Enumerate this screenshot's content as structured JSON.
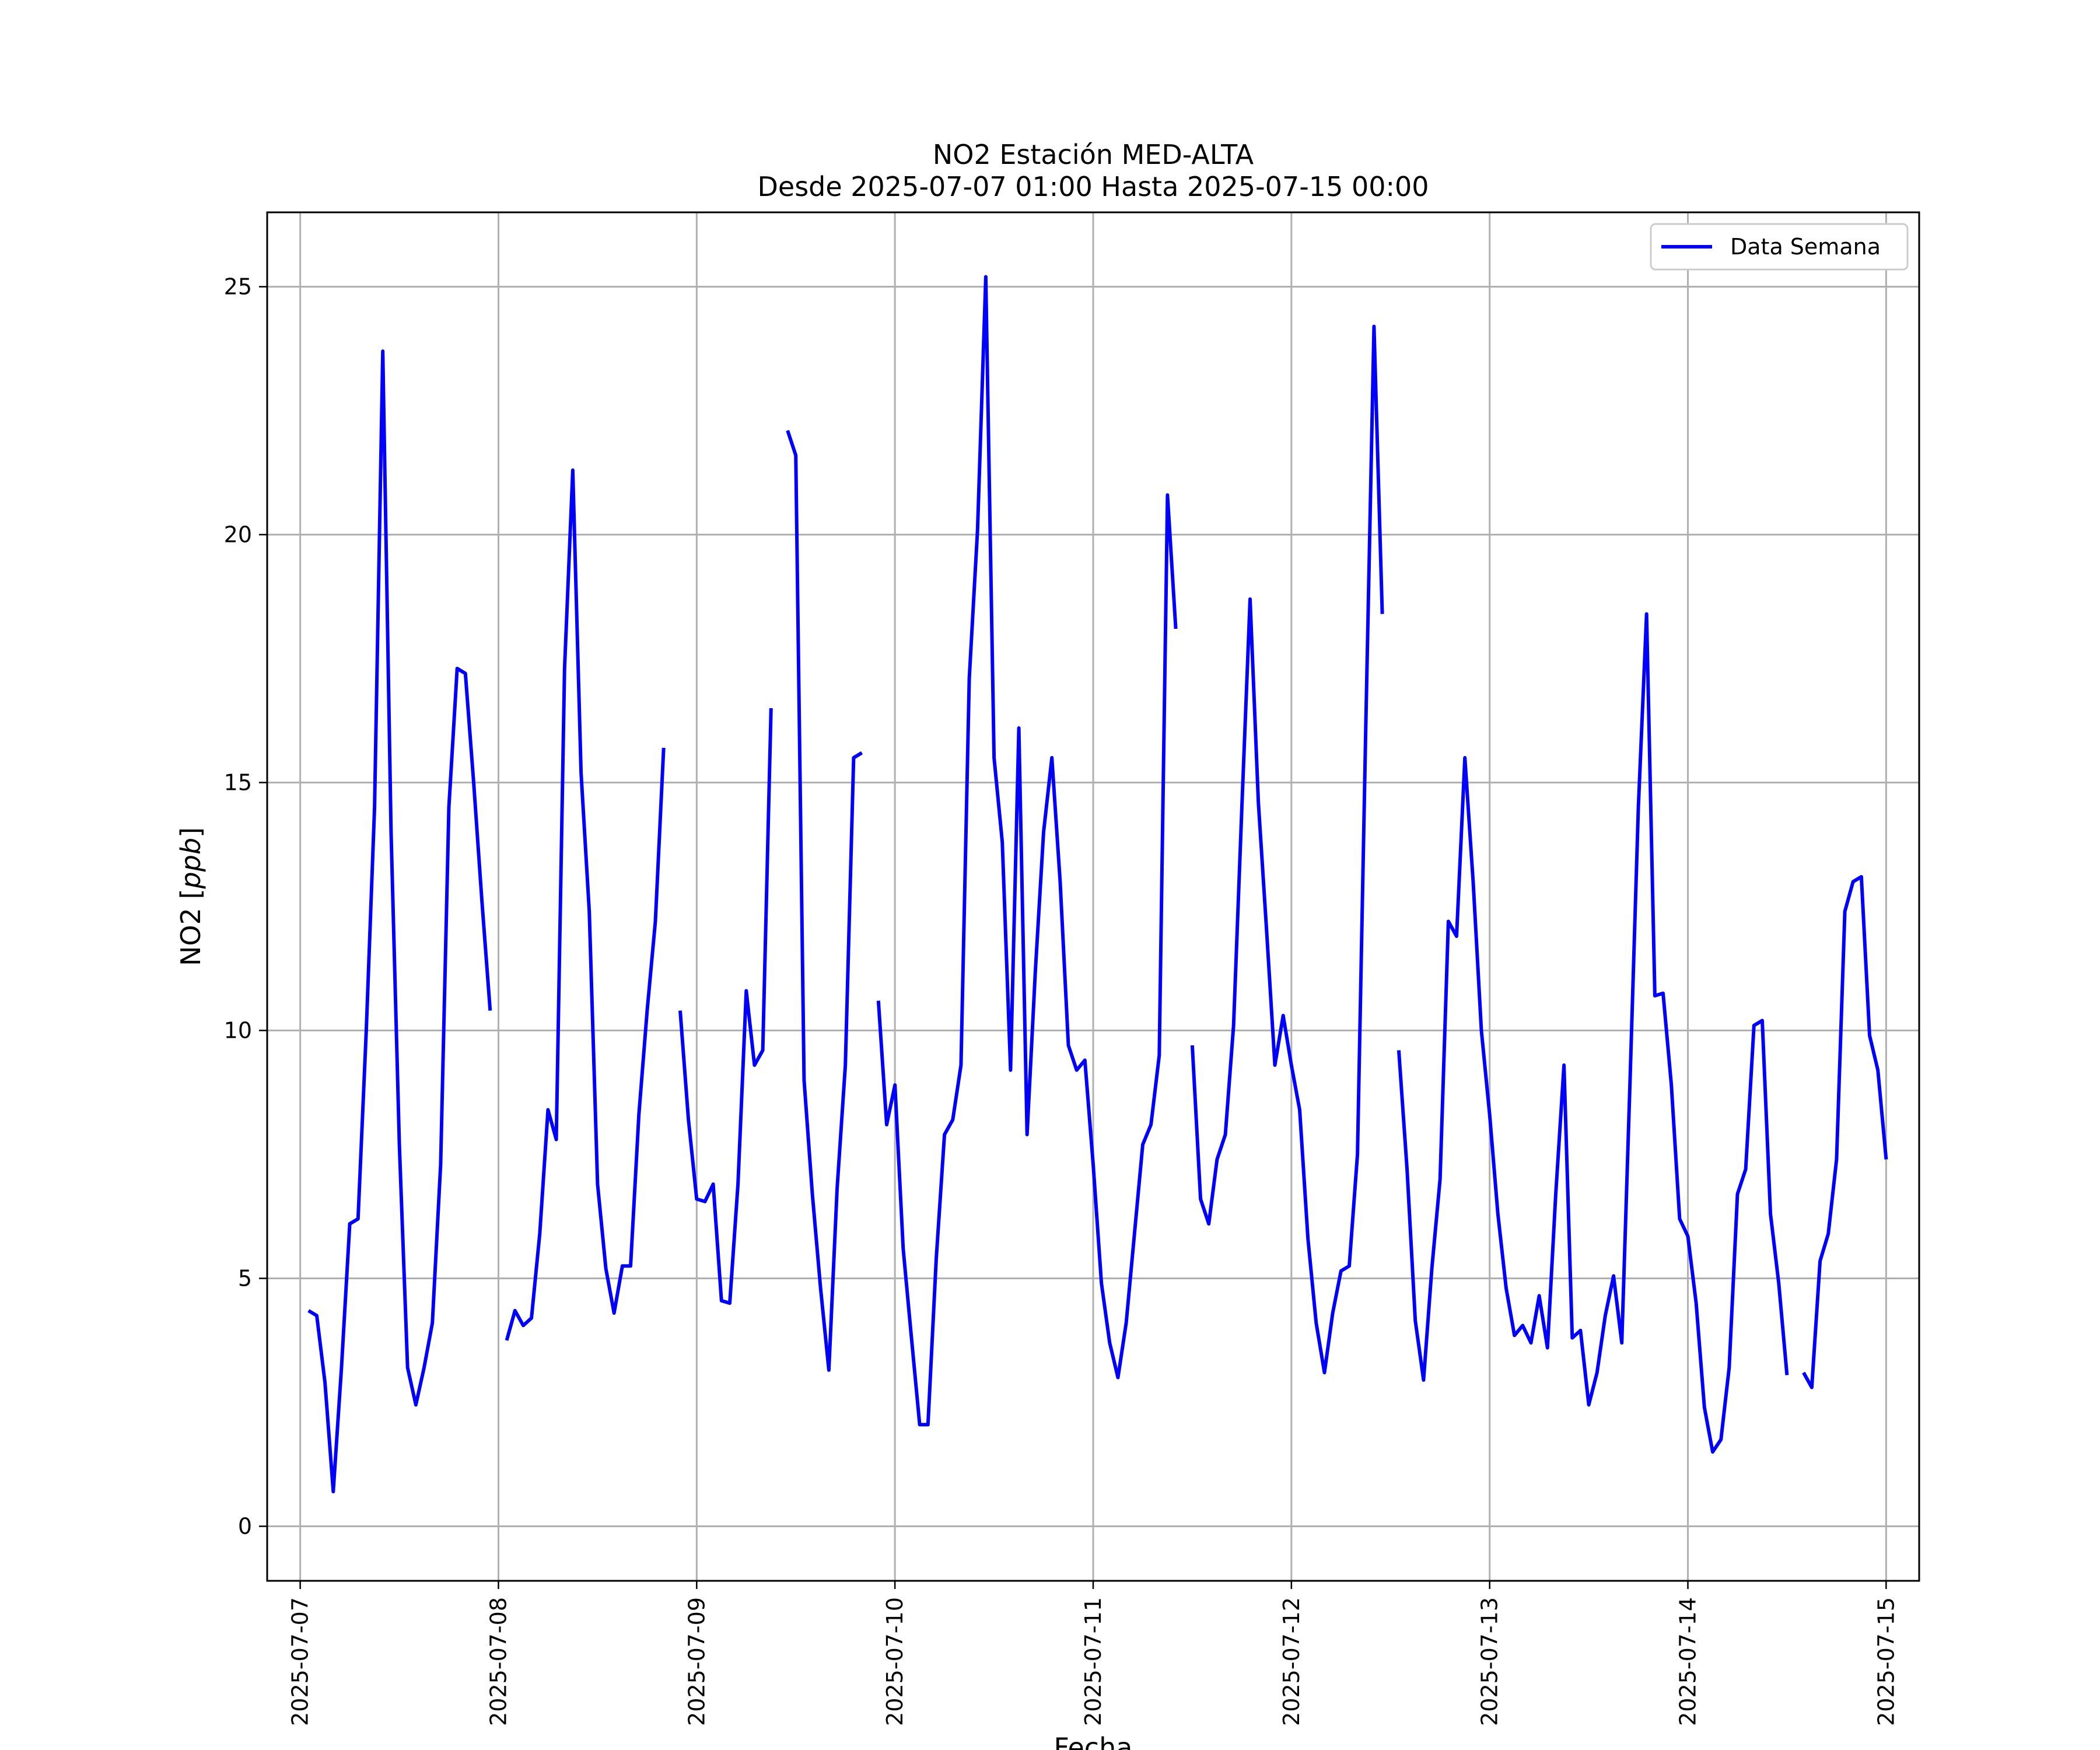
{
  "chart_data": {
    "type": "line",
    "title": "NO2 Estación MED-ALTA",
    "subtitle": "Desde 2025-07-07 01:00 Hasta 2025-07-15 00:00",
    "xlabel": "Fecha",
    "ylabel": "NO2 [ppb]",
    "ylabel_parts": {
      "prefix": "NO2 [",
      "unit": "ppb",
      "suffix": "]"
    },
    "xlim": [
      "2025-07-06 20:00",
      "2025-07-15 04:00"
    ],
    "ylim": [
      -1.1,
      26.5
    ],
    "x_ticks": [
      "2025-07-07",
      "2025-07-08",
      "2025-07-09",
      "2025-07-10",
      "2025-07-11",
      "2025-07-12",
      "2025-07-13",
      "2025-07-14",
      "2025-07-15"
    ],
    "y_ticks": [
      0,
      5,
      10,
      15,
      20,
      25
    ],
    "grid": true,
    "legend_position": "top-right",
    "series": [
      {
        "name": "Data Semana",
        "color": "#0000ff",
        "points": [
          [
            "2025-07-07 01:00",
            4.35
          ],
          [
            "2025-07-07 02:00",
            4.25
          ],
          [
            "2025-07-07 03:00",
            2.9
          ],
          [
            "2025-07-07 04:00",
            0.7
          ],
          [
            "2025-07-07 05:00",
            3.2
          ],
          [
            "2025-07-07 06:00",
            6.1
          ],
          [
            "2025-07-07 07:00",
            6.2
          ],
          [
            "2025-07-07 08:00",
            10.0
          ],
          [
            "2025-07-07 09:00",
            14.5
          ],
          [
            "2025-07-07 10:00",
            23.7
          ],
          [
            "2025-07-07 11:00",
            14.0
          ],
          [
            "2025-07-07 12:00",
            7.7
          ],
          [
            "2025-07-07 13:00",
            3.2
          ],
          [
            "2025-07-07 14:00",
            2.45
          ],
          [
            "2025-07-07 15:00",
            3.2
          ],
          [
            "2025-07-07 16:00",
            4.1
          ],
          [
            "2025-07-07 17:00",
            7.3
          ],
          [
            "2025-07-07 18:00",
            14.5
          ],
          [
            "2025-07-07 19:00",
            17.3
          ],
          [
            "2025-07-07 20:00",
            17.2
          ],
          [
            "2025-07-07 21:00",
            15.0
          ],
          [
            "2025-07-07 22:00",
            12.6
          ],
          [
            "2025-07-07 23:00",
            10.4
          ],
          [
            "2025-07-08 00:00",
            null
          ],
          [
            "2025-07-08 01:00",
            3.75
          ],
          [
            "2025-07-08 02:00",
            4.35
          ],
          [
            "2025-07-08 03:00",
            4.05
          ],
          [
            "2025-07-08 04:00",
            4.2
          ],
          [
            "2025-07-08 05:00",
            5.9
          ],
          [
            "2025-07-08 06:00",
            8.4
          ],
          [
            "2025-07-08 07:00",
            7.8
          ],
          [
            "2025-07-08 08:00",
            17.3
          ],
          [
            "2025-07-08 09:00",
            21.3
          ],
          [
            "2025-07-08 10:00",
            15.2
          ],
          [
            "2025-07-08 11:00",
            12.4
          ],
          [
            "2025-07-08 12:00",
            6.9
          ],
          [
            "2025-07-08 13:00",
            5.2
          ],
          [
            "2025-07-08 14:00",
            4.3
          ],
          [
            "2025-07-08 15:00",
            5.25
          ],
          [
            "2025-07-08 16:00",
            5.25
          ],
          [
            "2025-07-08 17:00",
            8.3
          ],
          [
            "2025-07-08 18:00",
            10.4
          ],
          [
            "2025-07-08 19:00",
            12.2
          ],
          [
            "2025-07-08 20:00",
            15.7
          ],
          [
            "2025-07-08 21:00",
            null
          ],
          [
            "2025-07-08 22:00",
            10.4
          ],
          [
            "2025-07-08 23:00",
            8.2
          ],
          [
            "2025-07-09 00:00",
            6.6
          ],
          [
            "2025-07-09 01:00",
            6.55
          ],
          [
            "2025-07-09 02:00",
            6.9
          ],
          [
            "2025-07-09 03:00",
            4.55
          ],
          [
            "2025-07-09 04:00",
            4.5
          ],
          [
            "2025-07-09 05:00",
            6.9
          ],
          [
            "2025-07-09 06:00",
            10.8
          ],
          [
            "2025-07-09 07:00",
            9.3
          ],
          [
            "2025-07-09 08:00",
            9.6
          ],
          [
            "2025-07-09 09:00",
            16.5
          ],
          [
            "2025-07-09 10:00",
            null
          ],
          [
            "2025-07-09 11:00",
            22.1
          ],
          [
            "2025-07-09 12:00",
            21.6
          ],
          [
            "2025-07-09 13:00",
            9.0
          ],
          [
            "2025-07-09 14:00",
            6.7
          ],
          [
            "2025-07-09 15:00",
            4.8
          ],
          [
            "2025-07-09 16:00",
            3.15
          ],
          [
            "2025-07-09 17:00",
            6.8
          ],
          [
            "2025-07-09 18:00",
            9.3
          ],
          [
            "2025-07-09 19:00",
            15.5
          ],
          [
            "2025-07-09 20:00",
            15.6
          ],
          [
            "2025-07-09 21:00",
            null
          ],
          [
            "2025-07-09 22:00",
            10.6
          ],
          [
            "2025-07-09 23:00",
            8.1
          ],
          [
            "2025-07-10 00:00",
            8.9
          ],
          [
            "2025-07-10 01:00",
            5.6
          ],
          [
            "2025-07-10 02:00",
            3.8
          ],
          [
            "2025-07-10 03:00",
            2.05
          ],
          [
            "2025-07-10 04:00",
            2.05
          ],
          [
            "2025-07-10 05:00",
            5.4
          ],
          [
            "2025-07-10 06:00",
            7.9
          ],
          [
            "2025-07-10 07:00",
            8.2
          ],
          [
            "2025-07-10 08:00",
            9.3
          ],
          [
            "2025-07-10 09:00",
            17.1
          ],
          [
            "2025-07-10 10:00",
            20.1
          ],
          [
            "2025-07-10 11:00",
            25.2
          ],
          [
            "2025-07-10 12:00",
            15.5
          ],
          [
            "2025-07-10 13:00",
            13.8
          ],
          [
            "2025-07-10 14:00",
            9.2
          ],
          [
            "2025-07-10 15:00",
            16.1
          ],
          [
            "2025-07-10 16:00",
            7.9
          ],
          [
            "2025-07-10 17:00",
            11.2
          ],
          [
            "2025-07-10 18:00",
            14.0
          ],
          [
            "2025-07-10 19:00",
            15.5
          ],
          [
            "2025-07-10 20:00",
            13.0
          ],
          [
            "2025-07-10 21:00",
            9.7
          ],
          [
            "2025-07-10 22:00",
            9.2
          ],
          [
            "2025-07-10 23:00",
            9.4
          ],
          [
            "2025-07-11 00:00",
            7.3
          ],
          [
            "2025-07-11 01:00",
            4.9
          ],
          [
            "2025-07-11 02:00",
            3.7
          ],
          [
            "2025-07-11 03:00",
            3.0
          ],
          [
            "2025-07-11 04:00",
            4.1
          ],
          [
            "2025-07-11 05:00",
            5.9
          ],
          [
            "2025-07-11 06:00",
            7.7
          ],
          [
            "2025-07-11 07:00",
            8.1
          ],
          [
            "2025-07-11 08:00",
            9.5
          ],
          [
            "2025-07-11 09:00",
            20.8
          ],
          [
            "2025-07-11 10:00",
            18.1
          ],
          [
            "2025-07-11 11:00",
            null
          ],
          [
            "2025-07-11 12:00",
            9.7
          ],
          [
            "2025-07-11 13:00",
            6.6
          ],
          [
            "2025-07-11 14:00",
            6.1
          ],
          [
            "2025-07-11 15:00",
            7.4
          ],
          [
            "2025-07-11 16:00",
            7.9
          ],
          [
            "2025-07-11 17:00",
            10.1
          ],
          [
            "2025-07-11 18:00",
            14.5
          ],
          [
            "2025-07-11 19:00",
            18.7
          ],
          [
            "2025-07-11 20:00",
            14.6
          ],
          [
            "2025-07-11 21:00",
            12.0
          ],
          [
            "2025-07-11 22:00",
            9.3
          ],
          [
            "2025-07-11 23:00",
            10.3
          ],
          [
            "2025-07-12 00:00",
            9.3
          ],
          [
            "2025-07-12 01:00",
            8.4
          ],
          [
            "2025-07-12 02:00",
            5.8
          ],
          [
            "2025-07-12 03:00",
            4.1
          ],
          [
            "2025-07-12 04:00",
            3.1
          ],
          [
            "2025-07-12 05:00",
            4.3
          ],
          [
            "2025-07-12 06:00",
            5.15
          ],
          [
            "2025-07-12 07:00",
            5.25
          ],
          [
            "2025-07-12 08:00",
            7.5
          ],
          [
            "2025-07-12 09:00",
            16.1
          ],
          [
            "2025-07-12 10:00",
            24.2
          ],
          [
            "2025-07-12 11:00",
            18.4
          ],
          [
            "2025-07-12 12:00",
            null
          ],
          [
            "2025-07-12 13:00",
            9.6
          ],
          [
            "2025-07-12 14:00",
            7.2
          ],
          [
            "2025-07-12 15:00",
            4.15
          ],
          [
            "2025-07-12 16:00",
            2.95
          ],
          [
            "2025-07-12 17:00",
            5.2
          ],
          [
            "2025-07-12 18:00",
            7.0
          ],
          [
            "2025-07-12 19:00",
            12.2
          ],
          [
            "2025-07-12 20:00",
            11.9
          ],
          [
            "2025-07-12 21:00",
            15.5
          ],
          [
            "2025-07-12 22:00",
            13.0
          ],
          [
            "2025-07-12 23:00",
            10.0
          ],
          [
            "2025-07-13 00:00",
            8.3
          ],
          [
            "2025-07-13 01:00",
            6.3
          ],
          [
            "2025-07-13 02:00",
            4.8
          ],
          [
            "2025-07-13 03:00",
            3.85
          ],
          [
            "2025-07-13 04:00",
            4.05
          ],
          [
            "2025-07-13 05:00",
            3.7
          ],
          [
            "2025-07-13 06:00",
            4.65
          ],
          [
            "2025-07-13 07:00",
            3.6
          ],
          [
            "2025-07-13 08:00",
            6.7
          ],
          [
            "2025-07-13 09:00",
            9.3
          ],
          [
            "2025-07-13 10:00",
            3.8
          ],
          [
            "2025-07-13 11:00",
            3.95
          ],
          [
            "2025-07-13 12:00",
            2.45
          ],
          [
            "2025-07-13 13:00",
            3.1
          ],
          [
            "2025-07-13 14:00",
            4.25
          ],
          [
            "2025-07-13 15:00",
            5.05
          ],
          [
            "2025-07-13 16:00",
            3.7
          ],
          [
            "2025-07-13 17:00",
            9.0
          ],
          [
            "2025-07-13 18:00",
            14.5
          ],
          [
            "2025-07-13 19:00",
            18.4
          ],
          [
            "2025-07-13 20:00",
            10.7
          ],
          [
            "2025-07-13 21:00",
            10.75
          ],
          [
            "2025-07-13 22:00",
            8.9
          ],
          [
            "2025-07-13 23:00",
            6.2
          ],
          [
            "2025-07-14 00:00",
            5.85
          ],
          [
            "2025-07-14 01:00",
            4.5
          ],
          [
            "2025-07-14 02:00",
            2.4
          ],
          [
            "2025-07-14 03:00",
            1.5
          ],
          [
            "2025-07-14 04:00",
            1.75
          ],
          [
            "2025-07-14 05:00",
            3.2
          ],
          [
            "2025-07-14 06:00",
            6.7
          ],
          [
            "2025-07-14 07:00",
            7.2
          ],
          [
            "2025-07-14 08:00",
            10.1
          ],
          [
            "2025-07-14 09:00",
            10.2
          ],
          [
            "2025-07-14 10:00",
            6.3
          ],
          [
            "2025-07-14 11:00",
            4.9
          ],
          [
            "2025-07-14 12:00",
            3.05
          ],
          [
            "2025-07-14 13:00",
            null
          ],
          [
            "2025-07-14 14:00",
            3.1
          ],
          [
            "2025-07-14 15:00",
            2.8
          ],
          [
            "2025-07-14 16:00",
            5.35
          ],
          [
            "2025-07-14 17:00",
            5.9
          ],
          [
            "2025-07-14 18:00",
            7.4
          ],
          [
            "2025-07-14 19:00",
            12.4
          ],
          [
            "2025-07-14 20:00",
            13.0
          ],
          [
            "2025-07-14 21:00",
            13.1
          ],
          [
            "2025-07-14 22:00",
            9.9
          ],
          [
            "2025-07-14 23:00",
            9.2
          ],
          [
            "2025-07-15 00:00",
            7.4
          ]
        ]
      }
    ]
  }
}
